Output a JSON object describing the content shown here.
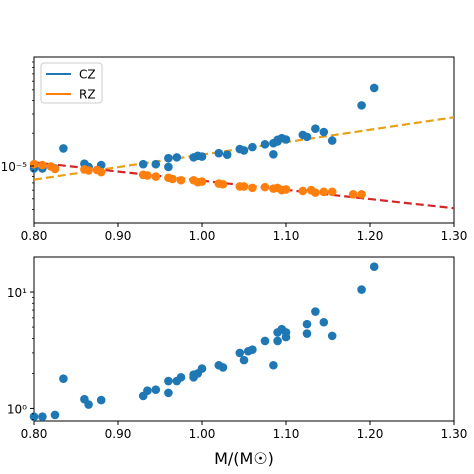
{
  "chart_data": [
    {
      "type": "scatter",
      "title": "",
      "xlabel": "",
      "ylabel": "",
      "xlim": [
        0.8,
        1.3
      ],
      "ylim": [
        3e-06,
        0.0001
      ],
      "yscale": "log",
      "grid": false,
      "legend": "top-left",
      "x_ticks": [
        0.8,
        0.9,
        1.0,
        1.1,
        1.2,
        1.3
      ],
      "x_tick_labels": [
        "0.80",
        "0.90",
        "1.00",
        "1.10",
        "1.20",
        "1.30"
      ],
      "y_ticks": [
        1e-05
      ],
      "y_tick_labels": [
        "10⁻⁵"
      ],
      "series": [
        {
          "name": "CZ",
          "color": "#1f77b4",
          "x": [
            0.8,
            0.81,
            0.825,
            0.835,
            0.86,
            0.865,
            0.88,
            0.93,
            0.945,
            0.96,
            0.96,
            0.97,
            0.99,
            0.995,
            1.0,
            1.02,
            1.03,
            1.045,
            1.05,
            1.06,
            1.075,
            1.085,
            1.085,
            1.09,
            1.09,
            1.095,
            1.1,
            1.12,
            1.125,
            1.135,
            1.145,
            1.155,
            1.19,
            1.205
          ],
          "y": [
            9.5e-06,
            9.5e-06,
            9.5e-06,
            1.45e-05,
            1.05e-05,
            9.8e-06,
            1.02e-05,
            1.04e-05,
            1.04e-05,
            9.8e-06,
            1.18e-05,
            1.2e-05,
            1.2e-05,
            1.24e-05,
            1.22e-05,
            1.31e-05,
            1.27e-05,
            1.43e-05,
            1.39e-05,
            1.49e-05,
            1.58e-05,
            1.28e-05,
            1.62e-05,
            1.74e-05,
            1.68e-05,
            1.8e-05,
            1.75e-05,
            1.93e-05,
            1.85e-05,
            2.2e-05,
            2.05e-05,
            1.71e-05,
            3.6e-05,
            5.2e-05
          ]
        },
        {
          "name": "RZ",
          "color": "#ff7f0e",
          "x": [
            0.8,
            0.81,
            0.82,
            0.825,
            0.86,
            0.865,
            0.875,
            0.88,
            0.93,
            0.935,
            0.945,
            0.96,
            0.965,
            0.975,
            0.99,
            0.995,
            1.0,
            1.02,
            1.025,
            1.045,
            1.05,
            1.06,
            1.075,
            1.085,
            1.09,
            1.095,
            1.1,
            1.12,
            1.13,
            1.135,
            1.145,
            1.155,
            1.18,
            1.19
          ],
          "y": [
            1.04e-05,
            1.02e-05,
            9.9e-06,
            9.4e-06,
            9.3e-06,
            9.1e-06,
            9.2e-06,
            8.8e-06,
            8.3e-06,
            8.2e-06,
            8e-06,
            7.8e-06,
            7.6e-06,
            7.4e-06,
            7.4e-06,
            7.1e-06,
            7.2e-06,
            6.9e-06,
            6.8e-06,
            6.5e-06,
            6.5e-06,
            6.3e-06,
            6.4e-06,
            6.2e-06,
            6.3e-06,
            6e-06,
            6.1e-06,
            5.9e-06,
            6e-06,
            5.7e-06,
            5.8e-06,
            5.8e-06,
            5.5e-06,
            5.5e-06
          ]
        }
      ],
      "fit_lines": [
        {
          "color": "#e6a117",
          "style": "dashed",
          "x": [
            0.8,
            1.3
          ],
          "y": [
            7.5e-06,
            2.8e-05
          ]
        },
        {
          "color": "#d62728",
          "style": "dashed",
          "x": [
            0.8,
            1.3
          ],
          "y": [
            1.08e-05,
            4.1e-06
          ]
        }
      ]
    },
    {
      "type": "scatter",
      "title": "",
      "xlabel": "M/(M☉)",
      "ylabel": "",
      "xlim": [
        0.8,
        1.3
      ],
      "ylim": [
        0.78,
        20
      ],
      "yscale": "log",
      "grid": false,
      "legend": "none",
      "x_ticks": [
        0.8,
        0.9,
        1.0,
        1.1,
        1.2,
        1.3
      ],
      "x_tick_labels": [
        "0.80",
        "0.90",
        "1.00",
        "1.10",
        "1.20",
        "1.30"
      ],
      "y_ticks": [
        1,
        10
      ],
      "y_tick_labels": [
        "10⁰",
        "10¹"
      ],
      "series": [
        {
          "color": "#1f77b4",
          "x": [
            0.8,
            0.81,
            0.825,
            0.835,
            0.86,
            0.865,
            0.88,
            0.93,
            0.935,
            0.945,
            0.96,
            0.96,
            0.97,
            0.975,
            0.99,
            0.995,
            0.99,
            1.0,
            1.02,
            1.025,
            1.045,
            1.05,
            1.055,
            1.06,
            1.075,
            1.085,
            1.09,
            1.09,
            1.095,
            1.1,
            1.1,
            1.125,
            1.125,
            1.135,
            1.145,
            1.155,
            1.19,
            1.205
          ],
          "y": [
            0.85,
            0.85,
            0.88,
            1.8,
            1.2,
            1.08,
            1.18,
            1.28,
            1.42,
            1.45,
            1.36,
            1.72,
            1.72,
            1.85,
            1.85,
            2.0,
            1.95,
            2.2,
            2.35,
            2.25,
            3.0,
            2.6,
            3.1,
            3.2,
            3.8,
            2.35,
            3.8,
            4.5,
            4.8,
            4.1,
            4.5,
            5.3,
            4.4,
            6.8,
            5.5,
            4.2,
            10.5,
            16.5
          ]
        }
      ]
    }
  ]
}
